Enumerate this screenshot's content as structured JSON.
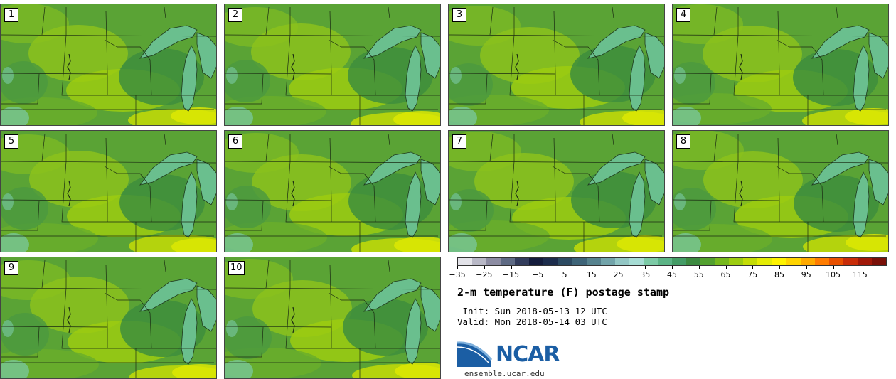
{
  "panels": [
    {
      "label": "1"
    },
    {
      "label": "2"
    },
    {
      "label": "3"
    },
    {
      "label": "4"
    },
    {
      "label": "5"
    },
    {
      "label": "6"
    },
    {
      "label": "7"
    },
    {
      "label": "8"
    },
    {
      "label": "9"
    },
    {
      "label": "10"
    }
  ],
  "colorbar": {
    "colors": [
      "#e2e2e8",
      "#b8b8c6",
      "#8c8ca2",
      "#5e6a84",
      "#323c5c",
      "#141c3c",
      "#1c2c4c",
      "#2c4a62",
      "#3e6478",
      "#56828e",
      "#72a4aa",
      "#92c6c4",
      "#a6dcd4",
      "#7ccaa6",
      "#5cb486",
      "#449c66",
      "#3c8a40",
      "#52a02e",
      "#76b81c",
      "#9ccc10",
      "#c4dc06",
      "#e4ec04",
      "#fff300",
      "#ffd400",
      "#ffaa00",
      "#ff7c00",
      "#e85000",
      "#c82c08",
      "#a01808",
      "#7a1008"
    ],
    "tick_labels": [
      "−35",
      "−25",
      "−15",
      "−5",
      "5",
      "15",
      "25",
      "35",
      "45",
      "55",
      "65",
      "75",
      "85",
      "95",
      "105",
      "115"
    ]
  },
  "title": "2-m temperature (F) postage stamp",
  "init": " Init: Sun 2018-05-13 12 UTC",
  "valid": "Valid: Mon 2018-05-14 03 UTC",
  "logo": {
    "text": "NCAR",
    "site": "ensemble.ucar.edu"
  }
}
